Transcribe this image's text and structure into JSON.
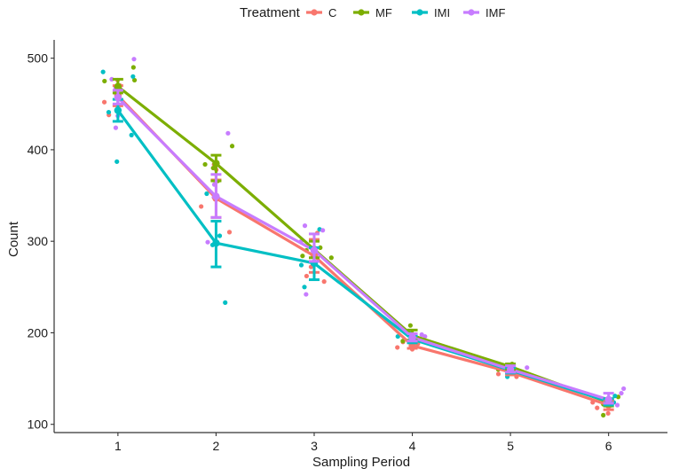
{
  "chart_data": {
    "type": "line",
    "title": "",
    "xlabel": "Sampling Period",
    "ylabel": "Count",
    "x": [
      1,
      2,
      3,
      4,
      5,
      6
    ],
    "x_tick_labels": [
      "1",
      "2",
      "3",
      "4",
      "5",
      "6"
    ],
    "y_ticks": [
      100,
      200,
      300,
      400,
      500
    ],
    "y_tick_labels": [
      "100",
      "200",
      "300",
      "400",
      "500"
    ],
    "xlim": [
      0.35,
      6.6
    ],
    "ylim": [
      91,
      520
    ],
    "grid": false,
    "legend": {
      "title": "Treatment",
      "placement": "top",
      "entries": [
        "C",
        "MF",
        "IMI",
        "IMF"
      ]
    },
    "series": [
      {
        "name": "C",
        "color": "#F8766D",
        "values": [
          459,
          347,
          284,
          186,
          157,
          121
        ],
        "error_low": [
          448,
          326,
          266,
          183,
          154,
          116
        ],
        "error_high": [
          470,
          367,
          302,
          190,
          160,
          126
        ],
        "points": [
          [
            1,
            476
          ],
          [
            1,
            470
          ],
          [
            1,
            452
          ],
          [
            1,
            438
          ],
          [
            2,
            384
          ],
          [
            2,
            378
          ],
          [
            2,
            338
          ],
          [
            2,
            310
          ],
          [
            3,
            309
          ],
          [
            3,
            272
          ],
          [
            3,
            262
          ],
          [
            3,
            256
          ],
          [
            4,
            188
          ],
          [
            4,
            184
          ],
          [
            4,
            182
          ],
          [
            4,
            190
          ],
          [
            5,
            152
          ],
          [
            5,
            155
          ],
          [
            5,
            160
          ],
          [
            6,
            112
          ],
          [
            6,
            118
          ],
          [
            6,
            124
          ]
        ]
      },
      {
        "name": "MF",
        "color": "#7CAE00",
        "values": [
          469,
          385,
          291,
          197,
          163,
          124
        ],
        "error_low": [
          462,
          366,
          282,
          192,
          160,
          120
        ],
        "error_high": [
          477,
          394,
          300,
          203,
          166,
          128
        ],
        "points": [
          [
            1,
            490
          ],
          [
            1,
            476
          ],
          [
            1,
            475
          ],
          [
            1,
            462
          ],
          [
            2,
            404
          ],
          [
            2,
            384
          ],
          [
            2,
            380
          ],
          [
            2,
            366
          ],
          [
            3,
            293
          ],
          [
            3,
            290
          ],
          [
            3,
            284
          ],
          [
            3,
            282
          ],
          [
            4,
            208
          ],
          [
            4,
            191
          ],
          [
            5,
            166
          ],
          [
            5,
            163
          ],
          [
            5,
            160
          ],
          [
            6,
            130
          ],
          [
            6,
            122
          ],
          [
            6,
            110
          ]
        ]
      },
      {
        "name": "IMI",
        "color": "#00BFC4",
        "values": [
          443,
          298,
          276,
          193,
          159,
          125
        ],
        "error_low": [
          431,
          272,
          258,
          189,
          156,
          121
        ],
        "error_high": [
          455,
          322,
          293,
          197,
          162,
          128
        ],
        "points": [
          [
            1,
            485
          ],
          [
            1,
            480
          ],
          [
            1,
            441
          ],
          [
            1,
            416
          ],
          [
            1,
            387
          ],
          [
            2,
            352
          ],
          [
            2,
            306
          ],
          [
            2,
            296
          ],
          [
            2,
            233
          ],
          [
            3,
            313
          ],
          [
            3,
            274
          ],
          [
            3,
            250
          ],
          [
            4,
            199
          ],
          [
            4,
            196
          ],
          [
            5,
            165
          ],
          [
            5,
            152
          ],
          [
            6,
            131
          ],
          [
            6,
            124
          ]
        ]
      },
      {
        "name": "IMF",
        "color": "#C77CFF",
        "values": [
          457,
          349,
          290,
          195,
          160,
          127
        ],
        "error_low": [
          450,
          326,
          278,
          191,
          157,
          123
        ],
        "error_high": [
          465,
          373,
          308,
          199,
          164,
          134
        ],
        "points": [
          [
            1,
            499
          ],
          [
            1,
            477
          ],
          [
            1,
            468
          ],
          [
            1,
            437
          ],
          [
            1,
            424
          ],
          [
            2,
            418
          ],
          [
            2,
            362
          ],
          [
            2,
            348
          ],
          [
            2,
            299
          ],
          [
            3,
            317
          ],
          [
            3,
            312
          ],
          [
            3,
            300
          ],
          [
            3,
            242
          ],
          [
            4,
            198
          ],
          [
            4,
            196
          ],
          [
            5,
            162
          ],
          [
            6,
            139
          ],
          [
            6,
            134
          ],
          [
            6,
            121
          ]
        ]
      }
    ]
  }
}
